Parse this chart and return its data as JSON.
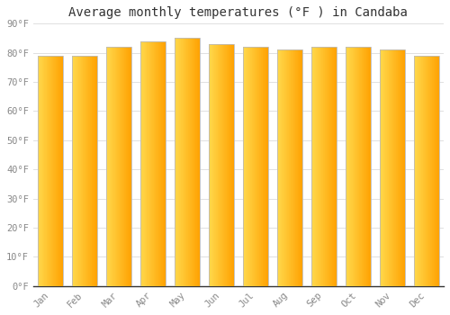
{
  "title": "Average monthly temperatures (°F ) in Candaba",
  "months": [
    "Jan",
    "Feb",
    "Mar",
    "Apr",
    "May",
    "Jun",
    "Jul",
    "Aug",
    "Sep",
    "Oct",
    "Nov",
    "Dec"
  ],
  "values": [
    79,
    79,
    82,
    84,
    85,
    83,
    82,
    81,
    82,
    82,
    81,
    79
  ],
  "ylim": [
    0,
    90
  ],
  "yticks": [
    0,
    10,
    20,
    30,
    40,
    50,
    60,
    70,
    80,
    90
  ],
  "ytick_labels": [
    "0°F",
    "10°F",
    "20°F",
    "30°F",
    "40°F",
    "50°F",
    "60°F",
    "70°F",
    "80°F",
    "90°F"
  ],
  "background_color": "#FFFFFF",
  "grid_color": "#E0E0E0",
  "bar_color_left": "#FFD966",
  "bar_color_right": "#FFA500",
  "bar_edge_color": "#BBBBBB",
  "title_fontsize": 10,
  "tick_fontsize": 7.5,
  "tick_color": "#888888",
  "bar_width": 0.75
}
